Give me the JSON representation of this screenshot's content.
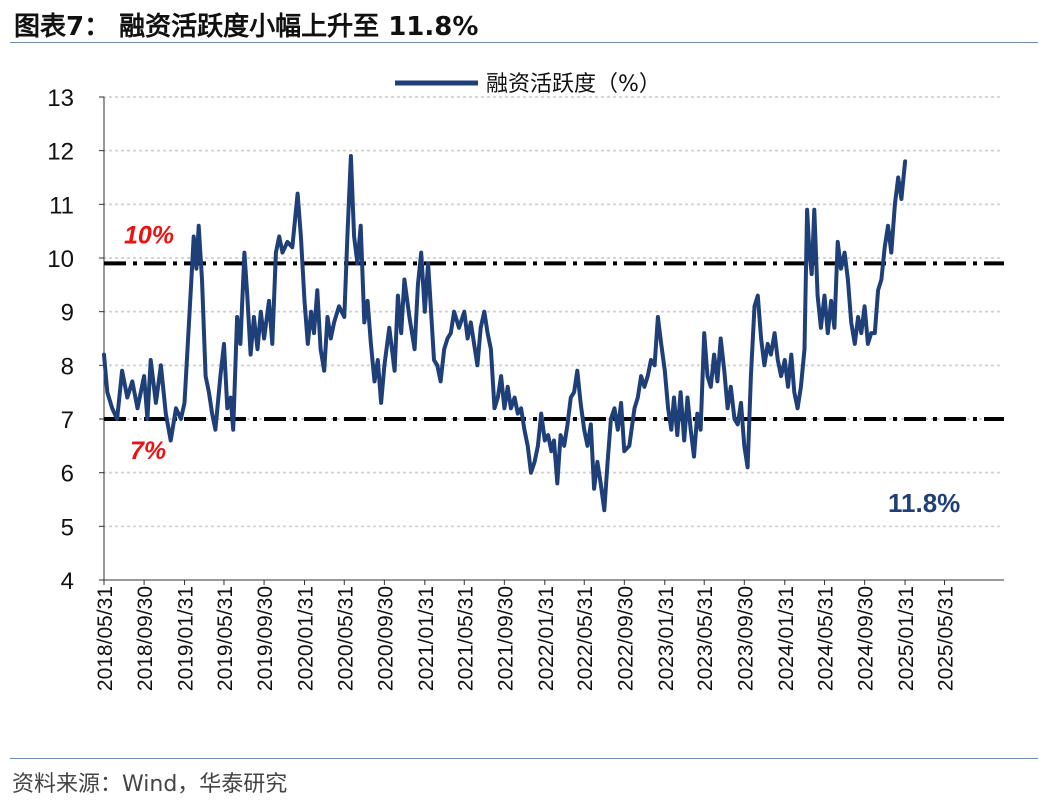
{
  "figure": {
    "title": "图表7：  融资活跃度小幅上升至 11.8%",
    "source": "资料来源：Wind，华泰研究"
  },
  "chart_data": {
    "type": "line",
    "title": "图表7：  融资活跃度小幅上升至 11.8%",
    "ylabel": "",
    "xlabel": "",
    "ylim": [
      4,
      13
    ],
    "yticks": [
      4,
      5,
      6,
      7,
      8,
      9,
      10,
      11,
      12,
      13
    ],
    "ytick_labels": [
      "4",
      "5",
      "6",
      "7",
      "8",
      "9",
      "10",
      "11",
      "12",
      "13"
    ],
    "xlim": [
      "2018-05-31",
      "2025-11-28"
    ],
    "xtick_labels": [
      "2018/05/31",
      "2018/09/30",
      "2019/01/31",
      "2019/05/31",
      "2019/09/30",
      "2020/01/31",
      "2020/05/31",
      "2020/09/30",
      "2021/01/31",
      "2021/05/31",
      "2021/09/30",
      "2022/01/31",
      "2022/05/31",
      "2022/09/30",
      "2023/01/31",
      "2023/05/31",
      "2023/09/30",
      "2024/01/31",
      "2024/05/31",
      "2024/09/30",
      "2025/01/31",
      "2025/05/31"
    ],
    "grid": "horizontal-dotted",
    "legend": {
      "position": "top-center",
      "label": "融资活跃度（%）"
    },
    "reference_lines": [
      {
        "y": 9.9,
        "label": "10%",
        "style": "dash-dot"
      },
      {
        "y": 7.0,
        "label": "7%",
        "style": "dash-dot"
      }
    ],
    "annotation": {
      "text": "11.8%",
      "color": "#1f3f78"
    },
    "series": [
      {
        "name": "融资活跃度（%）",
        "color": "#1f3f78",
        "points": [
          [
            "2018-05-31",
            8.2
          ],
          [
            "2018-06-10",
            7.5
          ],
          [
            "2018-06-25",
            7.2
          ],
          [
            "2018-07-10",
            7.0
          ],
          [
            "2018-07-25",
            7.9
          ],
          [
            "2018-08-10",
            7.4
          ],
          [
            "2018-08-25",
            7.7
          ],
          [
            "2018-09-10",
            7.2
          ],
          [
            "2018-09-30",
            7.8
          ],
          [
            "2018-10-10",
            7.0
          ],
          [
            "2018-10-20",
            8.1
          ],
          [
            "2018-11-05",
            7.3
          ],
          [
            "2018-11-20",
            8.0
          ],
          [
            "2018-12-05",
            7.1
          ],
          [
            "2018-12-20",
            6.6
          ],
          [
            "2019-01-05",
            7.2
          ],
          [
            "2019-01-20",
            7.0
          ],
          [
            "2019-01-31",
            7.3
          ],
          [
            "2019-02-10",
            8.4
          ],
          [
            "2019-02-20",
            9.5
          ],
          [
            "2019-02-28",
            10.4
          ],
          [
            "2019-03-08",
            9.8
          ],
          [
            "2019-03-15",
            10.6
          ],
          [
            "2019-03-25",
            9.6
          ],
          [
            "2019-04-05",
            7.8
          ],
          [
            "2019-04-15",
            7.5
          ],
          [
            "2019-04-25",
            7.1
          ],
          [
            "2019-05-05",
            6.8
          ],
          [
            "2019-05-20",
            7.8
          ],
          [
            "2019-05-31",
            8.4
          ],
          [
            "2019-06-10",
            7.2
          ],
          [
            "2019-06-20",
            7.4
          ],
          [
            "2019-06-28",
            6.8
          ],
          [
            "2019-07-10",
            8.9
          ],
          [
            "2019-07-20",
            8.4
          ],
          [
            "2019-08-01",
            10.1
          ],
          [
            "2019-08-10",
            9.3
          ],
          [
            "2019-08-20",
            8.2
          ],
          [
            "2019-08-30",
            8.9
          ],
          [
            "2019-09-10",
            8.3
          ],
          [
            "2019-09-20",
            9.0
          ],
          [
            "2019-09-30",
            8.5
          ],
          [
            "2019-10-15",
            9.2
          ],
          [
            "2019-10-25",
            8.4
          ],
          [
            "2019-11-05",
            10.1
          ],
          [
            "2019-11-15",
            10.4
          ],
          [
            "2019-11-25",
            10.1
          ],
          [
            "2019-12-10",
            10.3
          ],
          [
            "2019-12-25",
            10.2
          ],
          [
            "2020-01-10",
            11.2
          ],
          [
            "2020-01-20",
            10.4
          ],
          [
            "2020-01-31",
            9.2
          ],
          [
            "2020-02-10",
            8.4
          ],
          [
            "2020-02-20",
            9.0
          ],
          [
            "2020-02-29",
            8.6
          ],
          [
            "2020-03-10",
            9.4
          ],
          [
            "2020-03-20",
            8.3
          ],
          [
            "2020-03-31",
            7.9
          ],
          [
            "2020-04-10",
            8.9
          ],
          [
            "2020-04-20",
            8.5
          ],
          [
            "2020-04-30",
            8.8
          ],
          [
            "2020-05-15",
            9.1
          ],
          [
            "2020-05-31",
            8.9
          ],
          [
            "2020-06-10",
            10.5
          ],
          [
            "2020-06-20",
            11.9
          ],
          [
            "2020-06-30",
            10.4
          ],
          [
            "2020-07-10",
            9.9
          ],
          [
            "2020-07-20",
            10.6
          ],
          [
            "2020-07-31",
            8.8
          ],
          [
            "2020-08-10",
            9.2
          ],
          [
            "2020-08-20",
            8.4
          ],
          [
            "2020-08-31",
            7.7
          ],
          [
            "2020-09-10",
            8.1
          ],
          [
            "2020-09-20",
            7.3
          ],
          [
            "2020-09-30",
            8.0
          ],
          [
            "2020-10-15",
            8.7
          ],
          [
            "2020-10-31",
            7.9
          ],
          [
            "2020-11-10",
            9.3
          ],
          [
            "2020-11-20",
            8.6
          ],
          [
            "2020-11-30",
            9.6
          ],
          [
            "2020-12-15",
            8.9
          ],
          [
            "2020-12-31",
            8.3
          ],
          [
            "2021-01-10",
            9.5
          ],
          [
            "2021-01-20",
            10.1
          ],
          [
            "2021-01-31",
            9.0
          ],
          [
            "2021-02-10",
            9.9
          ],
          [
            "2021-02-20",
            8.9
          ],
          [
            "2021-02-28",
            8.1
          ],
          [
            "2021-03-10",
            8.0
          ],
          [
            "2021-03-20",
            7.7
          ],
          [
            "2021-03-31",
            8.3
          ],
          [
            "2021-04-10",
            8.5
          ],
          [
            "2021-04-20",
            8.6
          ],
          [
            "2021-04-30",
            9.0
          ],
          [
            "2021-05-15",
            8.7
          ],
          [
            "2021-05-31",
            9.0
          ],
          [
            "2021-06-10",
            8.5
          ],
          [
            "2021-06-20",
            8.8
          ],
          [
            "2021-06-30",
            8.4
          ],
          [
            "2021-07-10",
            8.0
          ],
          [
            "2021-07-20",
            8.7
          ],
          [
            "2021-07-31",
            9.0
          ],
          [
            "2021-08-10",
            8.6
          ],
          [
            "2021-08-20",
            8.3
          ],
          [
            "2021-08-31",
            7.2
          ],
          [
            "2021-09-10",
            7.4
          ],
          [
            "2021-09-20",
            7.8
          ],
          [
            "2021-09-30",
            7.2
          ],
          [
            "2021-10-10",
            7.6
          ],
          [
            "2021-10-20",
            7.2
          ],
          [
            "2021-10-31",
            7.4
          ],
          [
            "2021-11-10",
            7.1
          ],
          [
            "2021-11-20",
            7.2
          ],
          [
            "2021-11-30",
            6.8
          ],
          [
            "2021-12-10",
            6.5
          ],
          [
            "2021-12-20",
            6.0
          ],
          [
            "2021-12-31",
            6.2
          ],
          [
            "2022-01-10",
            6.5
          ],
          [
            "2022-01-20",
            7.1
          ],
          [
            "2022-01-31",
            6.6
          ],
          [
            "2022-02-10",
            6.7
          ],
          [
            "2022-02-20",
            6.4
          ],
          [
            "2022-02-28",
            6.6
          ],
          [
            "2022-03-10",
            5.8
          ],
          [
            "2022-03-20",
            6.7
          ],
          [
            "2022-03-31",
            6.5
          ],
          [
            "2022-04-10",
            6.9
          ],
          [
            "2022-04-20",
            7.4
          ],
          [
            "2022-04-30",
            7.5
          ],
          [
            "2022-05-10",
            7.9
          ],
          [
            "2022-05-20",
            7.3
          ],
          [
            "2022-05-31",
            6.8
          ],
          [
            "2022-06-10",
            6.5
          ],
          [
            "2022-06-20",
            6.9
          ],
          [
            "2022-06-30",
            5.7
          ],
          [
            "2022-07-10",
            6.2
          ],
          [
            "2022-07-20",
            5.8
          ],
          [
            "2022-07-31",
            5.3
          ],
          [
            "2022-08-10",
            6.2
          ],
          [
            "2022-08-20",
            7.0
          ],
          [
            "2022-08-31",
            7.2
          ],
          [
            "2022-09-10",
            6.8
          ],
          [
            "2022-09-20",
            7.3
          ],
          [
            "2022-09-30",
            6.4
          ],
          [
            "2022-10-15",
            6.5
          ],
          [
            "2022-10-31",
            7.2
          ],
          [
            "2022-11-10",
            7.4
          ],
          [
            "2022-11-20",
            7.8
          ],
          [
            "2022-11-30",
            7.6
          ],
          [
            "2022-12-10",
            7.8
          ],
          [
            "2022-12-20",
            8.1
          ],
          [
            "2022-12-31",
            8.0
          ],
          [
            "2023-01-10",
            8.9
          ],
          [
            "2023-01-20",
            8.4
          ],
          [
            "2023-01-31",
            7.9
          ],
          [
            "2023-02-10",
            7.2
          ],
          [
            "2023-02-20",
            6.8
          ],
          [
            "2023-02-28",
            7.4
          ],
          [
            "2023-03-10",
            6.7
          ],
          [
            "2023-03-20",
            7.5
          ],
          [
            "2023-03-31",
            6.6
          ],
          [
            "2023-04-10",
            7.4
          ],
          [
            "2023-04-20",
            6.8
          ],
          [
            "2023-04-30",
            6.3
          ],
          [
            "2023-05-10",
            7.1
          ],
          [
            "2023-05-20",
            6.8
          ],
          [
            "2023-05-31",
            8.6
          ],
          [
            "2023-06-10",
            7.8
          ],
          [
            "2023-06-20",
            7.6
          ],
          [
            "2023-06-30",
            8.2
          ],
          [
            "2023-07-10",
            7.7
          ],
          [
            "2023-07-20",
            8.5
          ],
          [
            "2023-07-31",
            7.9
          ],
          [
            "2023-08-10",
            7.2
          ],
          [
            "2023-08-20",
            7.6
          ],
          [
            "2023-08-31",
            7.0
          ],
          [
            "2023-09-10",
            6.9
          ],
          [
            "2023-09-20",
            7.3
          ],
          [
            "2023-09-30",
            6.5
          ],
          [
            "2023-10-10",
            6.1
          ],
          [
            "2023-10-20",
            7.8
          ],
          [
            "2023-10-31",
            9.1
          ],
          [
            "2023-11-10",
            9.3
          ],
          [
            "2023-11-20",
            8.5
          ],
          [
            "2023-11-30",
            8.0
          ],
          [
            "2023-12-10",
            8.4
          ],
          [
            "2023-12-20",
            8.2
          ],
          [
            "2023-12-31",
            8.6
          ],
          [
            "2024-01-10",
            8.1
          ],
          [
            "2024-01-20",
            7.8
          ],
          [
            "2024-01-31",
            8.1
          ],
          [
            "2024-02-10",
            7.6
          ],
          [
            "2024-02-20",
            8.2
          ],
          [
            "2024-02-29",
            7.5
          ],
          [
            "2024-03-10",
            7.2
          ],
          [
            "2024-03-20",
            7.6
          ],
          [
            "2024-03-31",
            8.3
          ],
          [
            "2024-04-08",
            10.9
          ],
          [
            "2024-04-15",
            10.1
          ],
          [
            "2024-04-22",
            9.7
          ],
          [
            "2024-04-30",
            10.9
          ],
          [
            "2024-05-10",
            9.3
          ],
          [
            "2024-05-20",
            8.7
          ],
          [
            "2024-05-31",
            9.3
          ],
          [
            "2024-06-10",
            8.6
          ],
          [
            "2024-06-20",
            9.2
          ],
          [
            "2024-06-30",
            8.7
          ],
          [
            "2024-07-10",
            10.3
          ],
          [
            "2024-07-20",
            9.8
          ],
          [
            "2024-07-31",
            10.1
          ],
          [
            "2024-08-10",
            9.6
          ],
          [
            "2024-08-20",
            8.8
          ],
          [
            "2024-08-31",
            8.4
          ],
          [
            "2024-09-10",
            8.9
          ],
          [
            "2024-09-20",
            8.6
          ],
          [
            "2024-09-30",
            9.1
          ],
          [
            "2024-10-10",
            8.4
          ],
          [
            "2024-10-20",
            8.6
          ],
          [
            "2024-10-31",
            8.6
          ],
          [
            "2024-11-10",
            9.4
          ],
          [
            "2024-11-20",
            9.6
          ],
          [
            "2024-11-30",
            10.2
          ],
          [
            "2024-12-10",
            10.6
          ],
          [
            "2024-12-20",
            10.1
          ],
          [
            "2024-12-31",
            11.0
          ],
          [
            "2025-01-10",
            11.5
          ],
          [
            "2025-01-20",
            11.1
          ],
          [
            "2025-01-31",
            11.8
          ]
        ]
      }
    ]
  }
}
